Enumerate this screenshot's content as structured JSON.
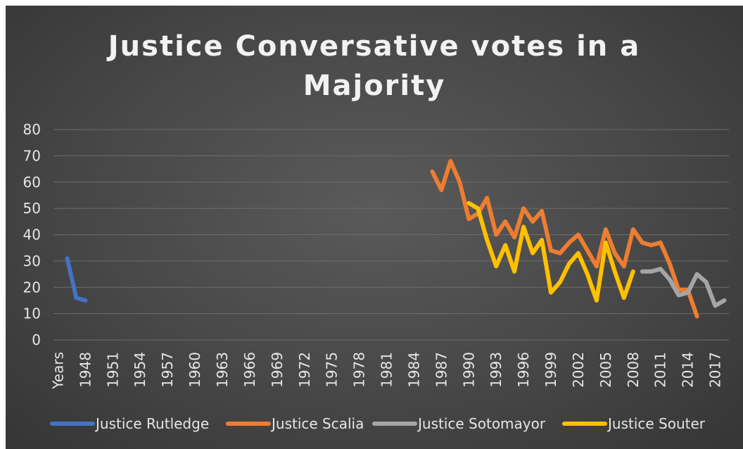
{
  "chart_data": {
    "type": "line",
    "title_lines": [
      "Justice Conversative votes in a",
      "Majority"
    ],
    "xlabel": "",
    "ylabel": "",
    "ylim": [
      0,
      80
    ],
    "y_ticks": [
      0,
      10,
      20,
      30,
      40,
      50,
      60,
      70,
      80
    ],
    "x_tick_labels": [
      "Years",
      "1948",
      "1951",
      "1954",
      "1957",
      "1960",
      "1963",
      "1966",
      "1969",
      "1972",
      "1975",
      "1978",
      "1981",
      "1984",
      "1987",
      "1990",
      "1993",
      "1996",
      "1999",
      "2002",
      "2005",
      "2008",
      "2011",
      "2014",
      "2017"
    ],
    "x_categories_start": 1945,
    "x_categories_end": 2018,
    "grid": "horizontal",
    "legend_position": "bottom",
    "series": [
      {
        "name": "Justice Rutledge",
        "color": "#4472c4",
        "x": [
          1946,
          1947,
          1948
        ],
        "y": [
          31,
          16,
          15
        ]
      },
      {
        "name": "Justice Scalia",
        "color": "#ed7d31",
        "x": [
          1986,
          1987,
          1988,
          1989,
          1990,
          1991,
          1992,
          1993,
          1994,
          1995,
          1996,
          1997,
          1998,
          1999,
          2000,
          2001,
          2002,
          2003,
          2004,
          2005,
          2006,
          2007,
          2008,
          2009,
          2010,
          2011,
          2012,
          2013,
          2014,
          2015
        ],
        "y": [
          64,
          57,
          68,
          60,
          46,
          48,
          54,
          40,
          45,
          39,
          50,
          45,
          49,
          34,
          33,
          37,
          40,
          34,
          28,
          42,
          33,
          28,
          42,
          37,
          36,
          37,
          29,
          19,
          19,
          9
        ]
      },
      {
        "name": "Justice Sotomayor",
        "color": "#a5a5a5",
        "x": [
          2009,
          2010,
          2011,
          2012,
          2013,
          2014,
          2015,
          2016,
          2017,
          2018
        ],
        "y": [
          26,
          26,
          27,
          23,
          17,
          18,
          25,
          22,
          13,
          15
        ]
      },
      {
        "name": "Justice Souter",
        "color": "#ffc000",
        "x": [
          1990,
          1991,
          1992,
          1993,
          1994,
          1995,
          1996,
          1997,
          1998,
          1999,
          2000,
          2001,
          2002,
          2003,
          2004,
          2005,
          2006,
          2007,
          2008
        ],
        "y": [
          52,
          50,
          38,
          28,
          36,
          26,
          43,
          33,
          38,
          18,
          22,
          29,
          33,
          25,
          15,
          37,
          26,
          16,
          26
        ]
      }
    ]
  }
}
